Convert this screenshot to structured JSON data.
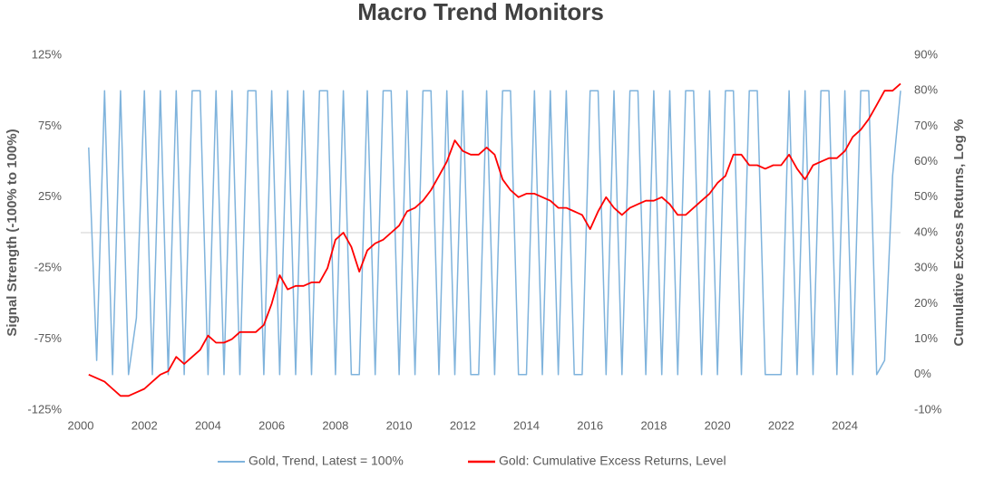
{
  "chart_data": {
    "type": "line",
    "title": "Macro Trend Monitors",
    "y_label": "Signal Strength (-100% to 100%)",
    "y2_label": "Cumulative Excess Returns, Log %",
    "x": [
      2000.25,
      2000.5,
      2000.75,
      2001,
      2001.25,
      2001.5,
      2001.75,
      2002,
      2002.25,
      2002.5,
      2002.75,
      2003,
      2003.25,
      2003.5,
      2003.75,
      2004,
      2004.25,
      2004.5,
      2004.75,
      2005,
      2005.25,
      2005.5,
      2005.75,
      2006,
      2006.25,
      2006.5,
      2006.75,
      2007,
      2007.25,
      2007.5,
      2007.75,
      2008,
      2008.25,
      2008.5,
      2008.75,
      2009,
      2009.25,
      2009.5,
      2009.75,
      2010,
      2010.25,
      2010.5,
      2010.75,
      2011,
      2011.25,
      2011.5,
      2011.75,
      2012,
      2012.25,
      2012.5,
      2012.75,
      2013,
      2013.25,
      2013.5,
      2013.75,
      2014,
      2014.25,
      2014.5,
      2014.75,
      2015,
      2015.25,
      2015.5,
      2015.75,
      2016,
      2016.25,
      2016.5,
      2016.75,
      2017,
      2017.25,
      2017.5,
      2017.75,
      2018,
      2018.25,
      2018.5,
      2018.75,
      2019,
      2019.25,
      2019.5,
      2019.75,
      2020,
      2020.25,
      2020.5,
      2020.75,
      2021,
      2021.25,
      2021.5,
      2021.75,
      2022,
      2022.25,
      2022.5,
      2022.75,
      2023,
      2023.25,
      2023.5,
      2023.75,
      2024,
      2024.25,
      2024.5,
      2024.75,
      2025,
      2025.25,
      2025.5,
      2025.75
    ],
    "series": [
      {
        "name": "Gold, Trend, Latest = 100%",
        "color": "#7fb3dc",
        "axis": "y",
        "values": [
          60,
          -90,
          100,
          -100,
          100,
          -100,
          -60,
          100,
          -100,
          100,
          -100,
          100,
          -100,
          100,
          100,
          -100,
          100,
          -100,
          100,
          -100,
          100,
          100,
          -100,
          100,
          -100,
          100,
          -100,
          100,
          -100,
          100,
          100,
          -100,
          100,
          -100,
          -100,
          100,
          -100,
          100,
          100,
          -100,
          100,
          -100,
          100,
          100,
          -100,
          100,
          -100,
          100,
          -100,
          -100,
          100,
          -100,
          100,
          100,
          -100,
          -100,
          100,
          -100,
          100,
          -100,
          100,
          -100,
          -100,
          100,
          100,
          -100,
          100,
          -100,
          100,
          100,
          -100,
          100,
          -100,
          100,
          -100,
          100,
          100,
          -100,
          100,
          -100,
          100,
          100,
          -100,
          100,
          100,
          -100,
          -100,
          -100,
          100,
          -100,
          100,
          -100,
          100,
          100,
          -100,
          100,
          -100,
          100,
          100,
          -100,
          -90,
          40,
          100
        ]
      },
      {
        "name": "Gold: Cumulative Excess Returns, Level",
        "color": "#ff0000",
        "axis": "y2",
        "values": [
          0,
          -1,
          -2,
          -4,
          -6,
          -6,
          -5,
          -4,
          -2,
          0,
          1,
          5,
          3,
          5,
          7,
          11,
          9,
          9,
          10,
          12,
          12,
          12,
          14,
          20,
          28,
          24,
          25,
          25,
          26,
          26,
          30,
          38,
          40,
          36,
          29,
          35,
          37,
          38,
          40,
          42,
          46,
          47,
          49,
          52,
          56,
          60,
          66,
          63,
          62,
          62,
          64,
          62,
          55,
          52,
          50,
          51,
          51,
          50,
          49,
          47,
          47,
          46,
          45,
          41,
          46,
          50,
          47,
          45,
          47,
          48,
          49,
          49,
          50,
          48,
          45,
          45,
          47,
          49,
          51,
          54,
          56,
          62,
          62,
          59,
          59,
          58,
          59,
          59,
          62,
          58,
          55,
          59,
          60,
          61,
          61,
          63,
          67,
          69,
          72,
          76,
          80,
          80,
          82
        ]
      }
    ],
    "xlim": [
      2000,
      2025.75
    ],
    "xticks": [
      2000,
      2002,
      2004,
      2006,
      2008,
      2010,
      2012,
      2014,
      2016,
      2018,
      2020,
      2022,
      2024
    ],
    "ylim": [
      -125,
      125
    ],
    "yticks": [
      {
        "value": -125,
        "label": "-125%"
      },
      {
        "value": -75,
        "label": "-75%"
      },
      {
        "value": -25,
        "label": "-25%"
      },
      {
        "value": 25,
        "label": "25%"
      },
      {
        "value": 75,
        "label": "75%"
      },
      {
        "value": 125,
        "label": "125%"
      }
    ],
    "y2lim": [
      -10,
      90
    ],
    "y2ticks": [
      {
        "value": -10,
        "label": "-10%"
      },
      {
        "value": 0,
        "label": "0%"
      },
      {
        "value": 10,
        "label": "10%"
      },
      {
        "value": 20,
        "label": "20%"
      },
      {
        "value": 30,
        "label": "30%"
      },
      {
        "value": 40,
        "label": "40%"
      },
      {
        "value": 50,
        "label": "50%"
      },
      {
        "value": 60,
        "label": "60%"
      },
      {
        "value": 70,
        "label": "70%"
      },
      {
        "value": 80,
        "label": "80%"
      },
      {
        "value": 90,
        "label": "90%"
      }
    ],
    "legend": "bottom"
  }
}
